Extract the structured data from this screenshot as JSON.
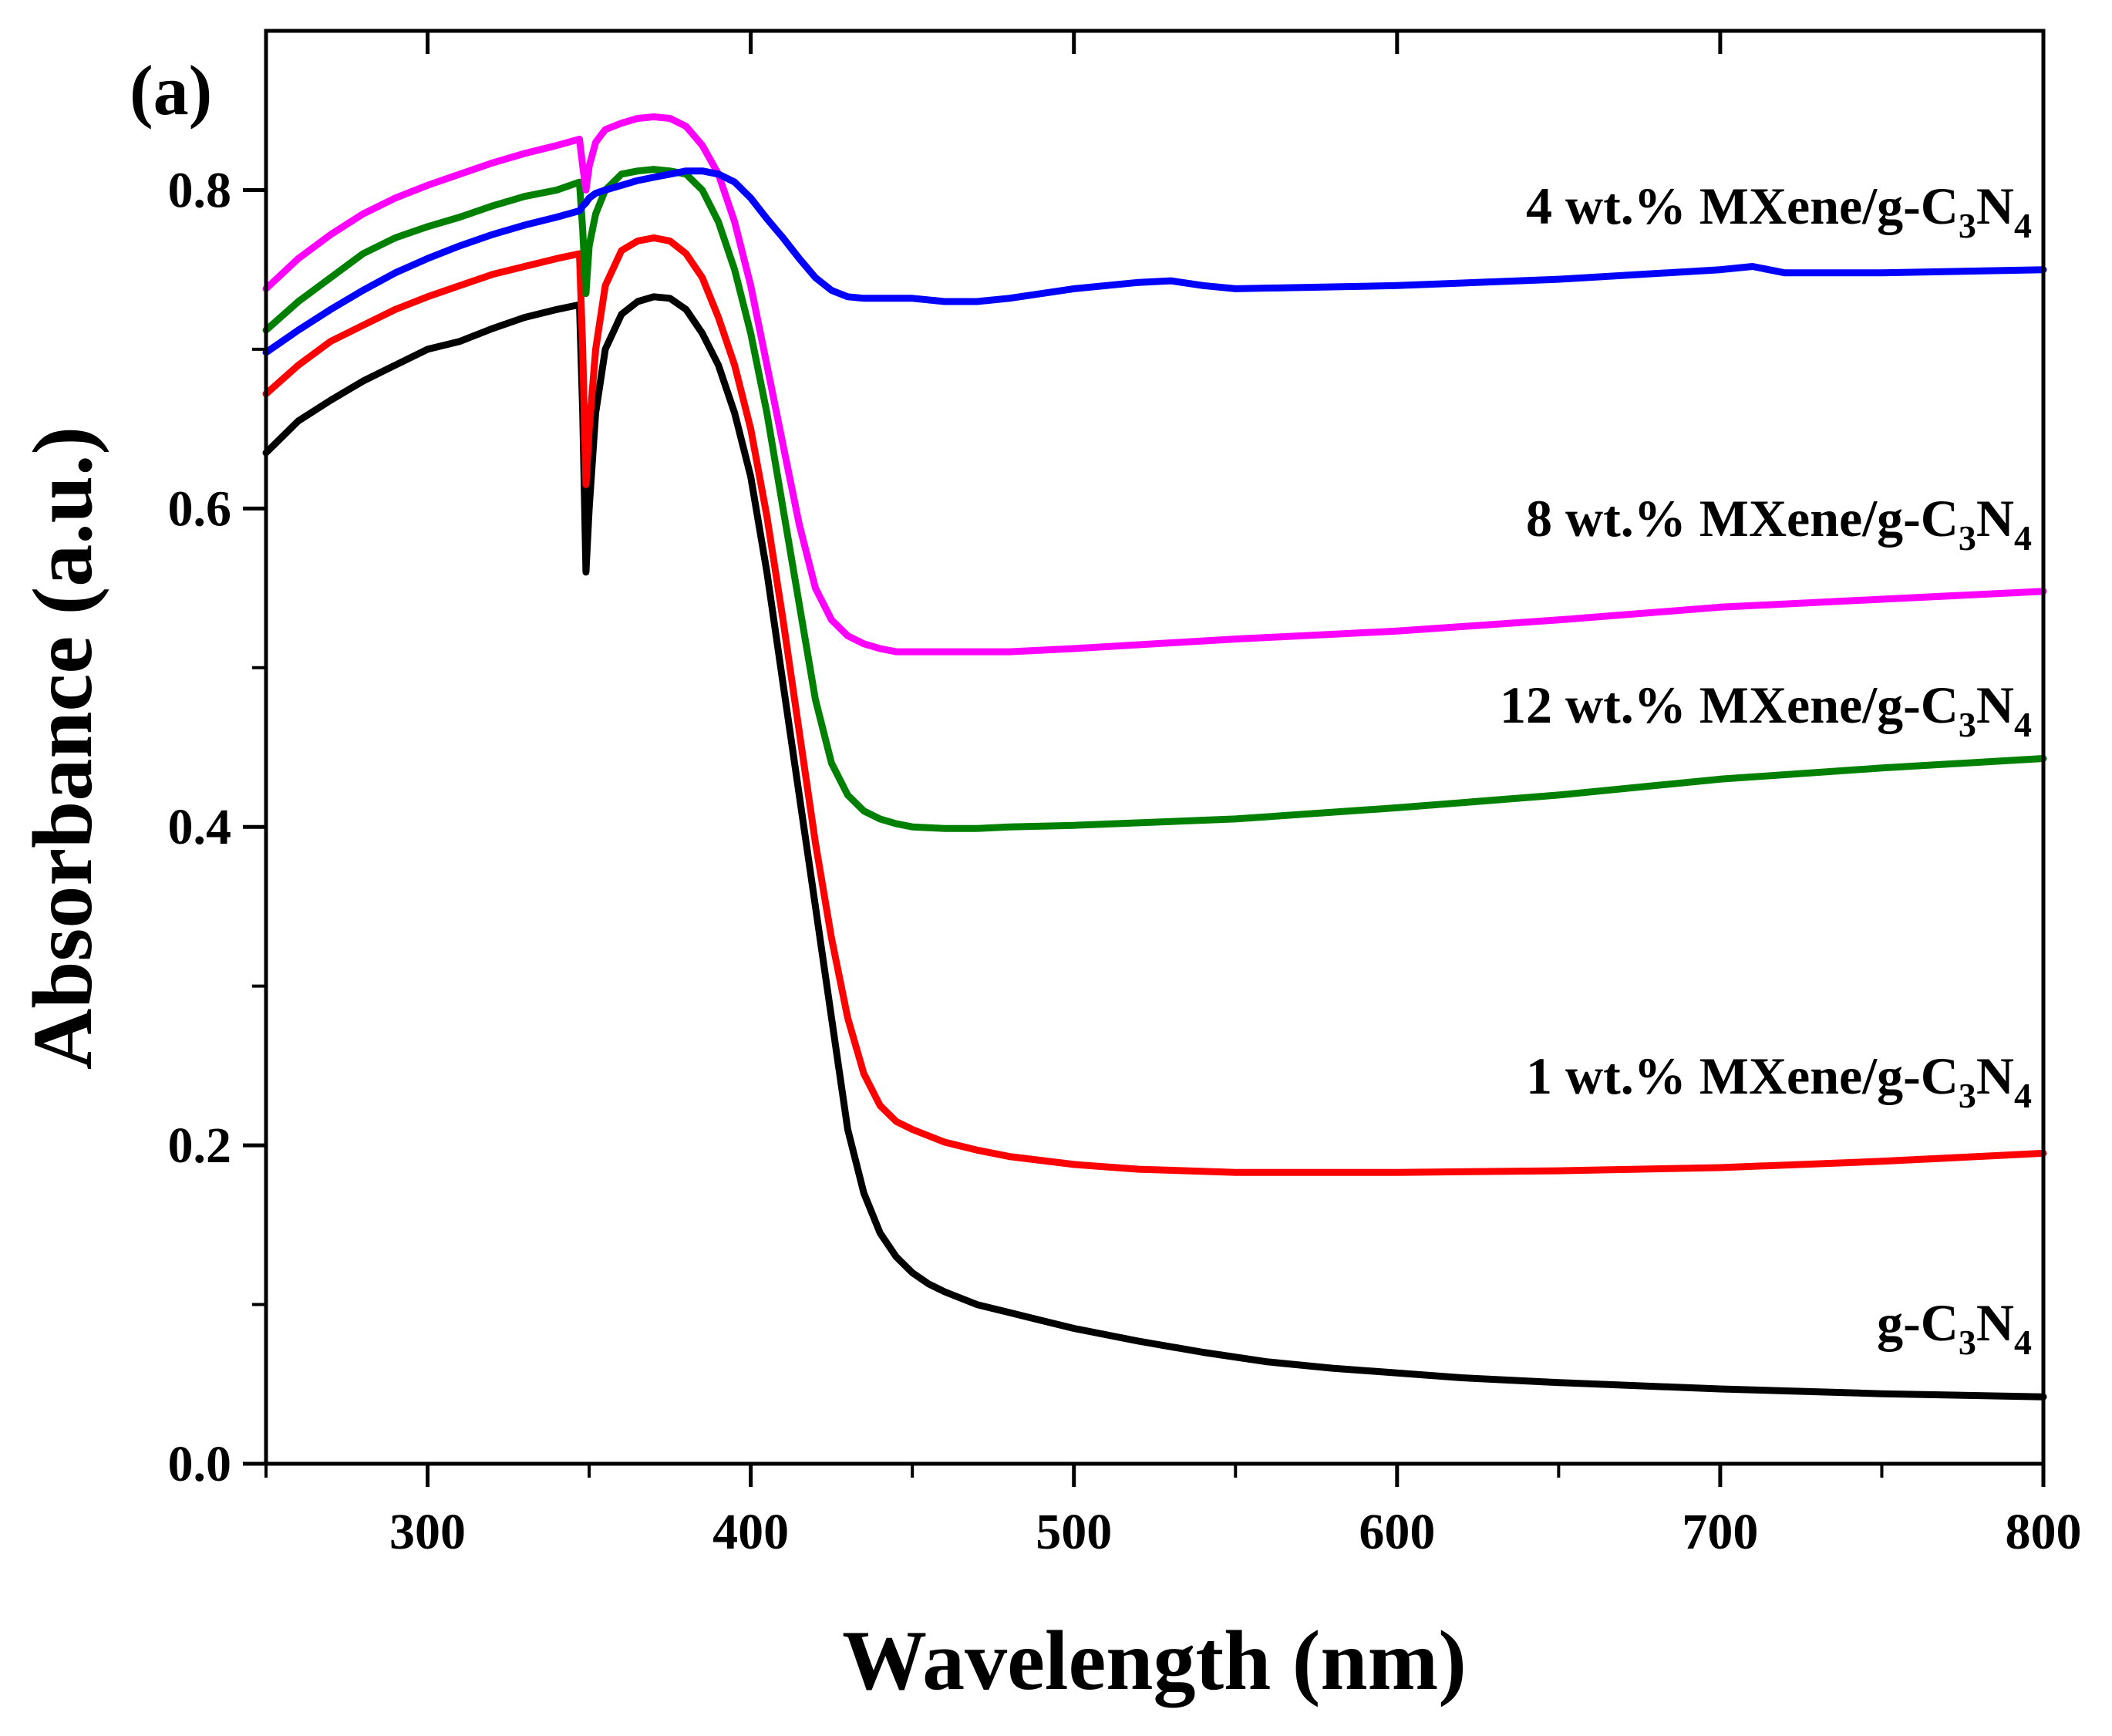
{
  "chart_data": {
    "type": "line",
    "panel_label": "(a)",
    "xlabel": "Wavelength (nm)",
    "ylabel": "Absorbance (a.u.)",
    "xlim": [
      250,
      800
    ],
    "ylim": [
      0.0,
      0.9
    ],
    "xticks": [
      300,
      400,
      500,
      600,
      700,
      800
    ],
    "yticks": [
      0.0,
      0.2,
      0.4,
      0.6,
      0.8
    ],
    "xtick_labels": [
      "300",
      "400",
      "500",
      "600",
      "700",
      "800"
    ],
    "ytick_labels": [
      "0.0",
      "0.2",
      "0.4",
      "0.6",
      "0.8"
    ],
    "grid": false,
    "series": [
      {
        "name": "g-C3N4",
        "label": {
          "main": "g-C",
          "sub1": "3",
          "mid": "N",
          "sub2": "4"
        },
        "color": "#000000",
        "x": [
          250,
          260,
          270,
          280,
          290,
          300,
          310,
          320,
          330,
          340,
          347,
          348,
          349,
          350,
          352,
          355,
          360,
          365,
          370,
          375,
          380,
          385,
          390,
          395,
          400,
          405,
          410,
          415,
          420,
          425,
          430,
          435,
          440,
          445,
          450,
          455,
          460,
          470,
          480,
          490,
          500,
          520,
          540,
          560,
          580,
          600,
          620,
          650,
          700,
          750,
          800
        ],
        "y": [
          0.635,
          0.655,
          0.668,
          0.68,
          0.69,
          0.7,
          0.705,
          0.713,
          0.72,
          0.725,
          0.728,
          0.66,
          0.56,
          0.6,
          0.66,
          0.7,
          0.722,
          0.73,
          0.733,
          0.732,
          0.725,
          0.71,
          0.69,
          0.66,
          0.62,
          0.56,
          0.49,
          0.42,
          0.35,
          0.28,
          0.21,
          0.17,
          0.145,
          0.13,
          0.12,
          0.113,
          0.108,
          0.1,
          0.095,
          0.09,
          0.085,
          0.077,
          0.07,
          0.064,
          0.06,
          0.057,
          0.054,
          0.051,
          0.047,
          0.044,
          0.042
        ]
      },
      {
        "name": "1 wt.% MXene/g-C3N4",
        "label": {
          "main": "1 wt.% MXene/g-C",
          "sub1": "3",
          "mid": "N",
          "sub2": "4"
        },
        "color": "#ff0000",
        "x": [
          250,
          260,
          270,
          280,
          290,
          300,
          310,
          320,
          330,
          340,
          347,
          348,
          349,
          350,
          352,
          355,
          360,
          365,
          370,
          375,
          380,
          385,
          390,
          395,
          400,
          405,
          410,
          415,
          420,
          425,
          430,
          435,
          440,
          445,
          450,
          460,
          470,
          480,
          500,
          520,
          550,
          600,
          650,
          700,
          750,
          800
        ],
        "y": [
          0.672,
          0.69,
          0.705,
          0.715,
          0.725,
          0.733,
          0.74,
          0.747,
          0.752,
          0.757,
          0.76,
          0.7,
          0.615,
          0.65,
          0.7,
          0.74,
          0.762,
          0.768,
          0.77,
          0.768,
          0.76,
          0.745,
          0.72,
          0.69,
          0.65,
          0.595,
          0.53,
          0.46,
          0.39,
          0.33,
          0.28,
          0.245,
          0.225,
          0.215,
          0.21,
          0.202,
          0.197,
          0.193,
          0.188,
          0.185,
          0.183,
          0.183,
          0.184,
          0.186,
          0.19,
          0.195
        ]
      },
      {
        "name": "12 wt.% MXene/g-C3N4",
        "label": {
          "main": "12 wt.% MXene/g-C",
          "sub1": "3",
          "mid": "N",
          "sub2": "4"
        },
        "color": "#008000",
        "x": [
          250,
          260,
          270,
          280,
          290,
          300,
          310,
          320,
          330,
          340,
          347,
          348,
          349,
          350,
          352,
          355,
          360,
          365,
          370,
          375,
          380,
          385,
          390,
          395,
          400,
          405,
          410,
          415,
          420,
          425,
          430,
          435,
          440,
          445,
          450,
          460,
          470,
          480,
          500,
          550,
          600,
          650,
          700,
          750,
          800
        ],
        "y": [
          0.712,
          0.73,
          0.745,
          0.76,
          0.77,
          0.777,
          0.783,
          0.79,
          0.796,
          0.8,
          0.805,
          0.775,
          0.735,
          0.765,
          0.785,
          0.8,
          0.81,
          0.812,
          0.813,
          0.812,
          0.81,
          0.8,
          0.78,
          0.75,
          0.71,
          0.66,
          0.6,
          0.54,
          0.48,
          0.44,
          0.42,
          0.41,
          0.405,
          0.402,
          0.4,
          0.399,
          0.399,
          0.4,
          0.401,
          0.405,
          0.412,
          0.42,
          0.43,
          0.437,
          0.443
        ]
      },
      {
        "name": "8 wt.% MXene/g-C3N4",
        "label": {
          "main": "8 wt.% MXene/g-C",
          "sub1": "3",
          "mid": "N",
          "sub2": "4"
        },
        "color": "#ff00ff",
        "x": [
          250,
          260,
          270,
          280,
          290,
          300,
          310,
          320,
          330,
          340,
          347,
          348,
          349,
          350,
          352,
          355,
          360,
          365,
          370,
          375,
          380,
          385,
          390,
          395,
          400,
          405,
          410,
          415,
          420,
          425,
          430,
          435,
          440,
          445,
          450,
          460,
          470,
          480,
          500,
          550,
          600,
          650,
          700,
          750,
          800
        ],
        "y": [
          0.738,
          0.757,
          0.772,
          0.785,
          0.795,
          0.803,
          0.81,
          0.817,
          0.823,
          0.828,
          0.832,
          0.815,
          0.8,
          0.815,
          0.83,
          0.838,
          0.842,
          0.845,
          0.846,
          0.845,
          0.84,
          0.828,
          0.81,
          0.78,
          0.74,
          0.69,
          0.64,
          0.59,
          0.55,
          0.53,
          0.52,
          0.515,
          0.512,
          0.51,
          0.51,
          0.51,
          0.51,
          0.51,
          0.512,
          0.518,
          0.523,
          0.53,
          0.538,
          0.543,
          0.548
        ]
      },
      {
        "name": "4 wt.% MXene/g-C3N4",
        "label": {
          "main": "4 wt.% MXene/g-C",
          "sub1": "3",
          "mid": "N",
          "sub2": "4"
        },
        "color": "#0000ff",
        "x": [
          250,
          260,
          270,
          280,
          290,
          300,
          310,
          320,
          330,
          340,
          347,
          348,
          349,
          350,
          352,
          355,
          360,
          365,
          370,
          375,
          380,
          385,
          390,
          395,
          400,
          405,
          410,
          415,
          420,
          425,
          430,
          435,
          440,
          445,
          450,
          460,
          470,
          480,
          500,
          520,
          530,
          540,
          550,
          600,
          650,
          700,
          710,
          720,
          750,
          800
        ],
        "y": [
          0.698,
          0.712,
          0.725,
          0.737,
          0.748,
          0.757,
          0.765,
          0.772,
          0.778,
          0.783,
          0.787,
          0.79,
          0.792,
          0.795,
          0.798,
          0.8,
          0.803,
          0.806,
          0.808,
          0.81,
          0.812,
          0.812,
          0.81,
          0.805,
          0.795,
          0.782,
          0.77,
          0.757,
          0.745,
          0.737,
          0.733,
          0.732,
          0.732,
          0.732,
          0.732,
          0.73,
          0.73,
          0.732,
          0.738,
          0.742,
          0.743,
          0.74,
          0.738,
          0.74,
          0.744,
          0.75,
          0.752,
          0.748,
          0.748,
          0.75
        ]
      }
    ]
  }
}
